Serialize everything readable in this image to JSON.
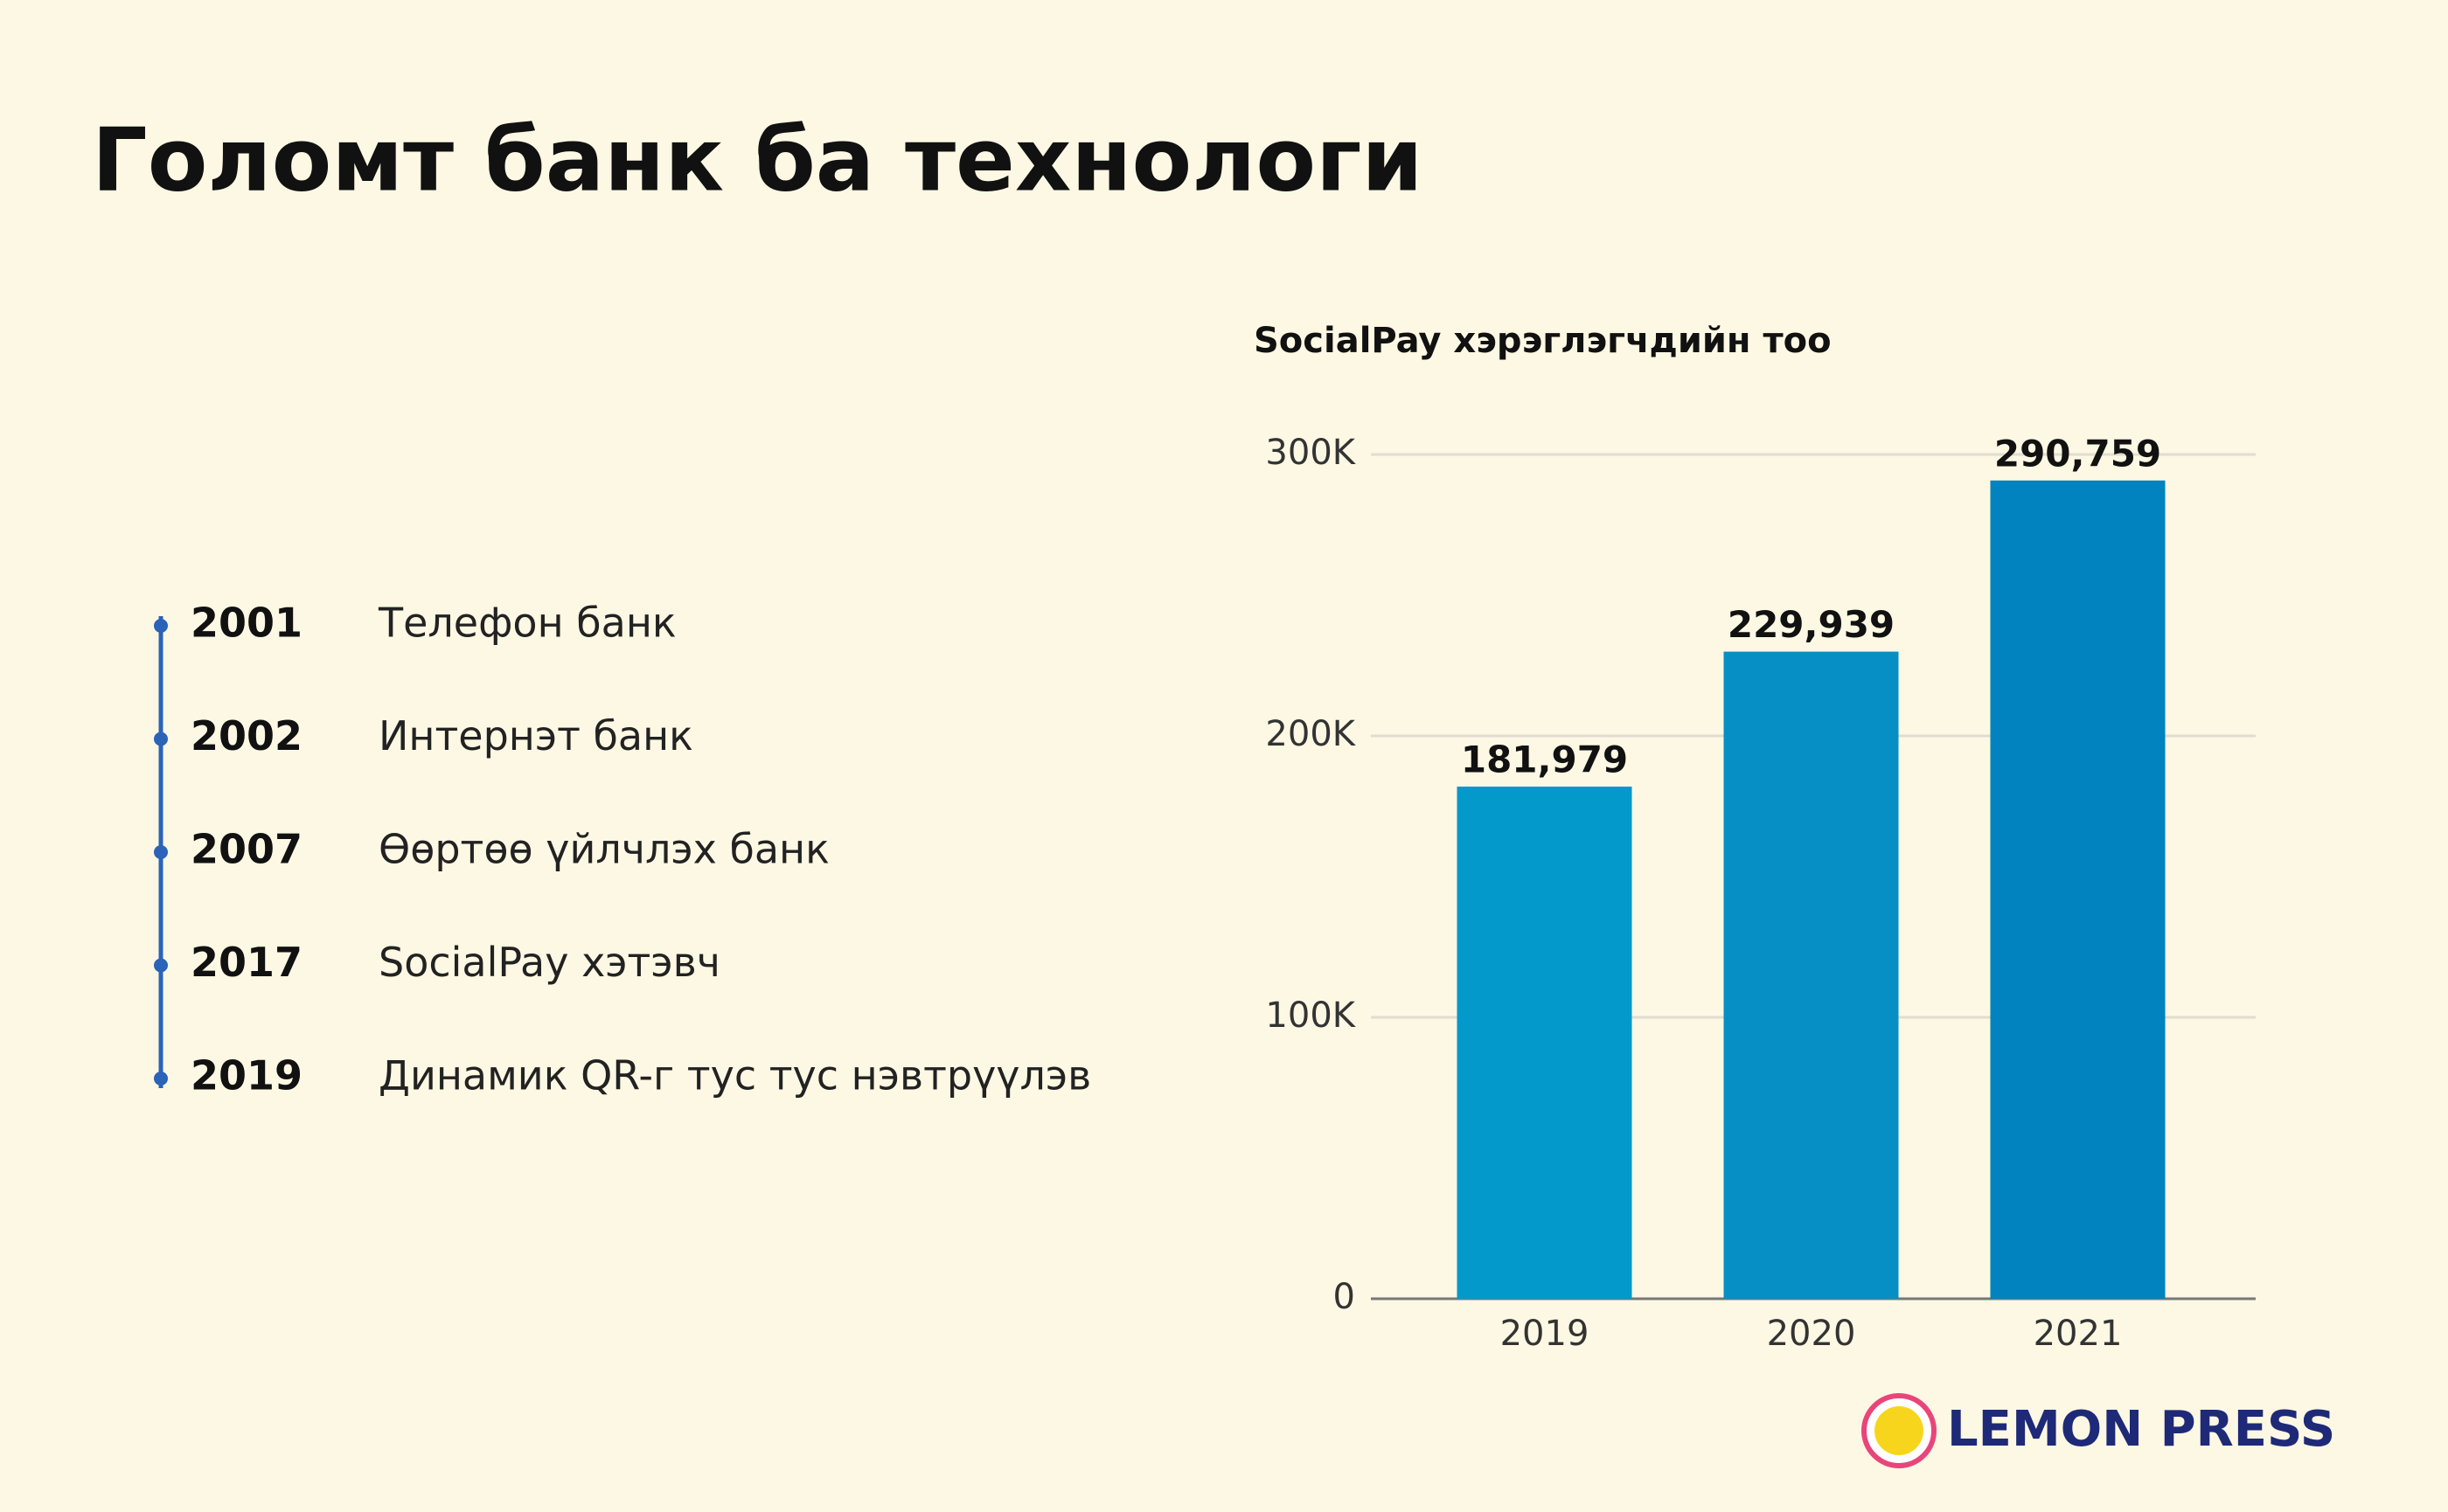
{
  "title": "Голомт банк ба технологи",
  "timeline": [
    {
      "year": "2001",
      "label": "Телефон банк"
    },
    {
      "year": "2002",
      "label": "Интернэт банк"
    },
    {
      "year": "2007",
      "label": "Өөртөө үйлчлэх банк"
    },
    {
      "year": "2017",
      "label": "SocialPay хэтэвч"
    },
    {
      "year": "2019",
      "label": "Динамик QR-г тус тус нэвтрүүлэв"
    }
  ],
  "brand": "LEMON PRESS",
  "chart_data": {
    "type": "bar",
    "title": "SocialPay хэрэглэгчдийн тоо",
    "categories": [
      "2019",
      "2020",
      "2021"
    ],
    "values": [
      181979,
      229939,
      290759
    ],
    "value_labels": [
      "181,979",
      "229,939",
      "290,759"
    ],
    "colors": [
      "#0399cb",
      "#058fc5",
      "#0083be"
    ],
    "ylim": [
      0,
      300000
    ],
    "yticks": [
      0,
      {
        "value": 100000,
        "label": "100K"
      },
      {
        "value": 200000,
        "label": "200K"
      },
      {
        "value": 300000,
        "label": "300K"
      }
    ],
    "grid": true
  }
}
